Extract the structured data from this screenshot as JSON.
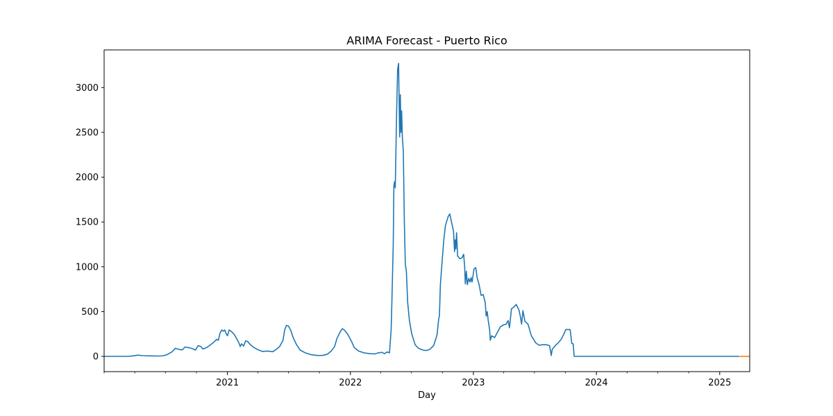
{
  "chart_data": {
    "type": "line",
    "title": "ARIMA Forecast - Puerto Rico",
    "xlabel": "Day",
    "ylabel": "",
    "xlim": [
      "2020-01-01",
      "2025-03-31"
    ],
    "ylim": [
      -170,
      3420
    ],
    "x_ticks": [
      {
        "date": "2021-01-01",
        "label": "2021"
      },
      {
        "date": "2022-01-01",
        "label": "2022"
      },
      {
        "date": "2023-01-01",
        "label": "2023"
      },
      {
        "date": "2024-01-01",
        "label": "2024"
      },
      {
        "date": "2025-01-01",
        "label": "2025"
      }
    ],
    "y_ticks": [
      0,
      500,
      1000,
      1500,
      2000,
      2500,
      3000
    ],
    "grid": false,
    "colors": {
      "history": "#1f77b4",
      "forecast": "#ff7f0e"
    },
    "series": [
      {
        "role": "history",
        "points": [
          [
            "2020-01-01",
            0
          ],
          [
            "2020-03-10",
            0
          ],
          [
            "2020-03-25",
            5
          ],
          [
            "2020-04-10",
            14
          ],
          [
            "2020-04-25",
            8
          ],
          [
            "2020-05-15",
            6
          ],
          [
            "2020-06-15",
            4
          ],
          [
            "2020-06-25",
            8
          ],
          [
            "2020-07-05",
            18
          ],
          [
            "2020-07-20",
            50
          ],
          [
            "2020-07-30",
            90
          ],
          [
            "2020-08-10",
            78
          ],
          [
            "2020-08-20",
            72
          ],
          [
            "2020-08-28",
            105
          ],
          [
            "2020-09-08",
            98
          ],
          [
            "2020-09-20",
            85
          ],
          [
            "2020-09-28",
            70
          ],
          [
            "2020-10-06",
            120
          ],
          [
            "2020-10-14",
            110
          ],
          [
            "2020-10-20",
            82
          ],
          [
            "2020-11-01",
            100
          ],
          [
            "2020-11-12",
            130
          ],
          [
            "2020-11-22",
            160
          ],
          [
            "2020-11-30",
            190
          ],
          [
            "2020-12-05",
            180
          ],
          [
            "2020-12-10",
            260
          ],
          [
            "2020-12-15",
            295
          ],
          [
            "2020-12-20",
            280
          ],
          [
            "2020-12-24",
            295
          ],
          [
            "2020-12-28",
            255
          ],
          [
            "2021-01-01",
            230
          ],
          [
            "2021-01-06",
            295
          ],
          [
            "2021-01-12",
            280
          ],
          [
            "2021-01-20",
            250
          ],
          [
            "2021-01-28",
            200
          ],
          [
            "2021-02-04",
            150
          ],
          [
            "2021-02-08",
            110
          ],
          [
            "2021-02-12",
            140
          ],
          [
            "2021-02-18",
            115
          ],
          [
            "2021-02-24",
            175
          ],
          [
            "2021-03-02",
            165
          ],
          [
            "2021-03-10",
            130
          ],
          [
            "2021-03-20",
            100
          ],
          [
            "2021-04-01",
            75
          ],
          [
            "2021-04-15",
            55
          ],
          [
            "2021-05-01",
            60
          ],
          [
            "2021-05-15",
            52
          ],
          [
            "2021-05-25",
            75
          ],
          [
            "2021-06-05",
            110
          ],
          [
            "2021-06-15",
            180
          ],
          [
            "2021-06-20",
            300
          ],
          [
            "2021-06-25",
            345
          ],
          [
            "2021-07-01",
            340
          ],
          [
            "2021-07-08",
            290
          ],
          [
            "2021-07-15",
            210
          ],
          [
            "2021-07-25",
            130
          ],
          [
            "2021-08-05",
            70
          ],
          [
            "2021-08-20",
            40
          ],
          [
            "2021-09-05",
            20
          ],
          [
            "2021-09-25",
            10
          ],
          [
            "2021-10-10",
            10
          ],
          [
            "2021-10-25",
            25
          ],
          [
            "2021-11-05",
            60
          ],
          [
            "2021-11-15",
            110
          ],
          [
            "2021-11-22",
            200
          ],
          [
            "2021-12-01",
            270
          ],
          [
            "2021-12-08",
            310
          ],
          [
            "2021-12-15",
            290
          ],
          [
            "2021-12-25",
            240
          ],
          [
            "2022-01-05",
            160
          ],
          [
            "2022-01-12",
            100
          ],
          [
            "2022-01-25",
            60
          ],
          [
            "2022-02-10",
            40
          ],
          [
            "2022-03-01",
            30
          ],
          [
            "2022-03-15",
            28
          ],
          [
            "2022-03-25",
            40
          ],
          [
            "2022-04-05",
            45
          ],
          [
            "2022-04-12",
            30
          ],
          [
            "2022-04-20",
            50
          ],
          [
            "2022-04-27",
            40
          ],
          [
            "2022-05-02",
            300
          ],
          [
            "2022-05-04",
            600
          ],
          [
            "2022-05-08",
            1250
          ],
          [
            "2022-05-10",
            1900
          ],
          [
            "2022-05-12",
            1950
          ],
          [
            "2022-05-14",
            1880
          ],
          [
            "2022-05-18",
            2700
          ],
          [
            "2022-05-21",
            3200
          ],
          [
            "2022-05-24",
            3270
          ],
          [
            "2022-05-27",
            2450
          ],
          [
            "2022-05-29",
            2920
          ],
          [
            "2022-05-31",
            2500
          ],
          [
            "2022-06-02",
            2740
          ],
          [
            "2022-06-04",
            2450
          ],
          [
            "2022-06-07",
            2290
          ],
          [
            "2022-06-10",
            1500
          ],
          [
            "2022-06-13",
            1030
          ],
          [
            "2022-06-16",
            950
          ],
          [
            "2022-06-20",
            600
          ],
          [
            "2022-06-25",
            400
          ],
          [
            "2022-07-02",
            250
          ],
          [
            "2022-07-12",
            130
          ],
          [
            "2022-07-22",
            90
          ],
          [
            "2022-08-05",
            70
          ],
          [
            "2022-08-15",
            65
          ],
          [
            "2022-08-25",
            80
          ],
          [
            "2022-09-05",
            120
          ],
          [
            "2022-09-15",
            240
          ],
          [
            "2022-09-20",
            420
          ],
          [
            "2022-09-22",
            450
          ],
          [
            "2022-09-25",
            800
          ],
          [
            "2022-09-30",
            1050
          ],
          [
            "2022-10-05",
            1300
          ],
          [
            "2022-10-10",
            1460
          ],
          [
            "2022-10-18",
            1560
          ],
          [
            "2022-10-23",
            1590
          ],
          [
            "2022-10-28",
            1500
          ],
          [
            "2022-11-03",
            1400
          ],
          [
            "2022-11-06",
            1170
          ],
          [
            "2022-11-08",
            1300
          ],
          [
            "2022-11-10",
            1200
          ],
          [
            "2022-11-12",
            1380
          ],
          [
            "2022-11-15",
            1120
          ],
          [
            "2022-11-22",
            1090
          ],
          [
            "2022-11-28",
            1100
          ],
          [
            "2022-12-03",
            1140
          ],
          [
            "2022-12-06",
            1000
          ],
          [
            "2022-12-08",
            810
          ],
          [
            "2022-12-11",
            950
          ],
          [
            "2022-12-14",
            800
          ],
          [
            "2022-12-18",
            870
          ],
          [
            "2022-12-22",
            830
          ],
          [
            "2022-12-25",
            880
          ],
          [
            "2022-12-28",
            830
          ],
          [
            "2023-01-03",
            980
          ],
          [
            "2023-01-08",
            990
          ],
          [
            "2023-01-12",
            880
          ],
          [
            "2023-01-18",
            800
          ],
          [
            "2023-01-24",
            680
          ],
          [
            "2023-01-30",
            690
          ],
          [
            "2023-02-05",
            600
          ],
          [
            "2023-02-08",
            450
          ],
          [
            "2023-02-11",
            500
          ],
          [
            "2023-02-14",
            400
          ],
          [
            "2023-02-18",
            300
          ],
          [
            "2023-02-20",
            180
          ],
          [
            "2023-02-24",
            230
          ],
          [
            "2023-03-05",
            210
          ],
          [
            "2023-03-12",
            260
          ],
          [
            "2023-03-22",
            330
          ],
          [
            "2023-03-30",
            350
          ],
          [
            "2023-04-08",
            360
          ],
          [
            "2023-04-14",
            400
          ],
          [
            "2023-04-18",
            320
          ],
          [
            "2023-04-24",
            530
          ],
          [
            "2023-05-01",
            550
          ],
          [
            "2023-05-08",
            580
          ],
          [
            "2023-05-16",
            520
          ],
          [
            "2023-05-20",
            450
          ],
          [
            "2023-05-24",
            360
          ],
          [
            "2023-05-28",
            510
          ],
          [
            "2023-06-03",
            390
          ],
          [
            "2023-06-12",
            360
          ],
          [
            "2023-06-22",
            230
          ],
          [
            "2023-07-05",
            150
          ],
          [
            "2023-07-15",
            125
          ],
          [
            "2023-07-25",
            130
          ],
          [
            "2023-08-05",
            130
          ],
          [
            "2023-08-15",
            120
          ],
          [
            "2023-08-20",
            10
          ],
          [
            "2023-08-23",
            80
          ],
          [
            "2023-09-01",
            120
          ],
          [
            "2023-09-12",
            160
          ],
          [
            "2023-09-20",
            200
          ],
          [
            "2023-09-28",
            260
          ],
          [
            "2023-10-02",
            300
          ],
          [
            "2023-10-15",
            300
          ],
          [
            "2023-10-20",
            145
          ],
          [
            "2023-10-24",
            140
          ],
          [
            "2023-10-27",
            0
          ],
          [
            "2025-02-28",
            0
          ]
        ]
      },
      {
        "role": "forecast",
        "points": [
          [
            "2025-03-01",
            0
          ],
          [
            "2025-03-31",
            0
          ]
        ]
      }
    ]
  }
}
